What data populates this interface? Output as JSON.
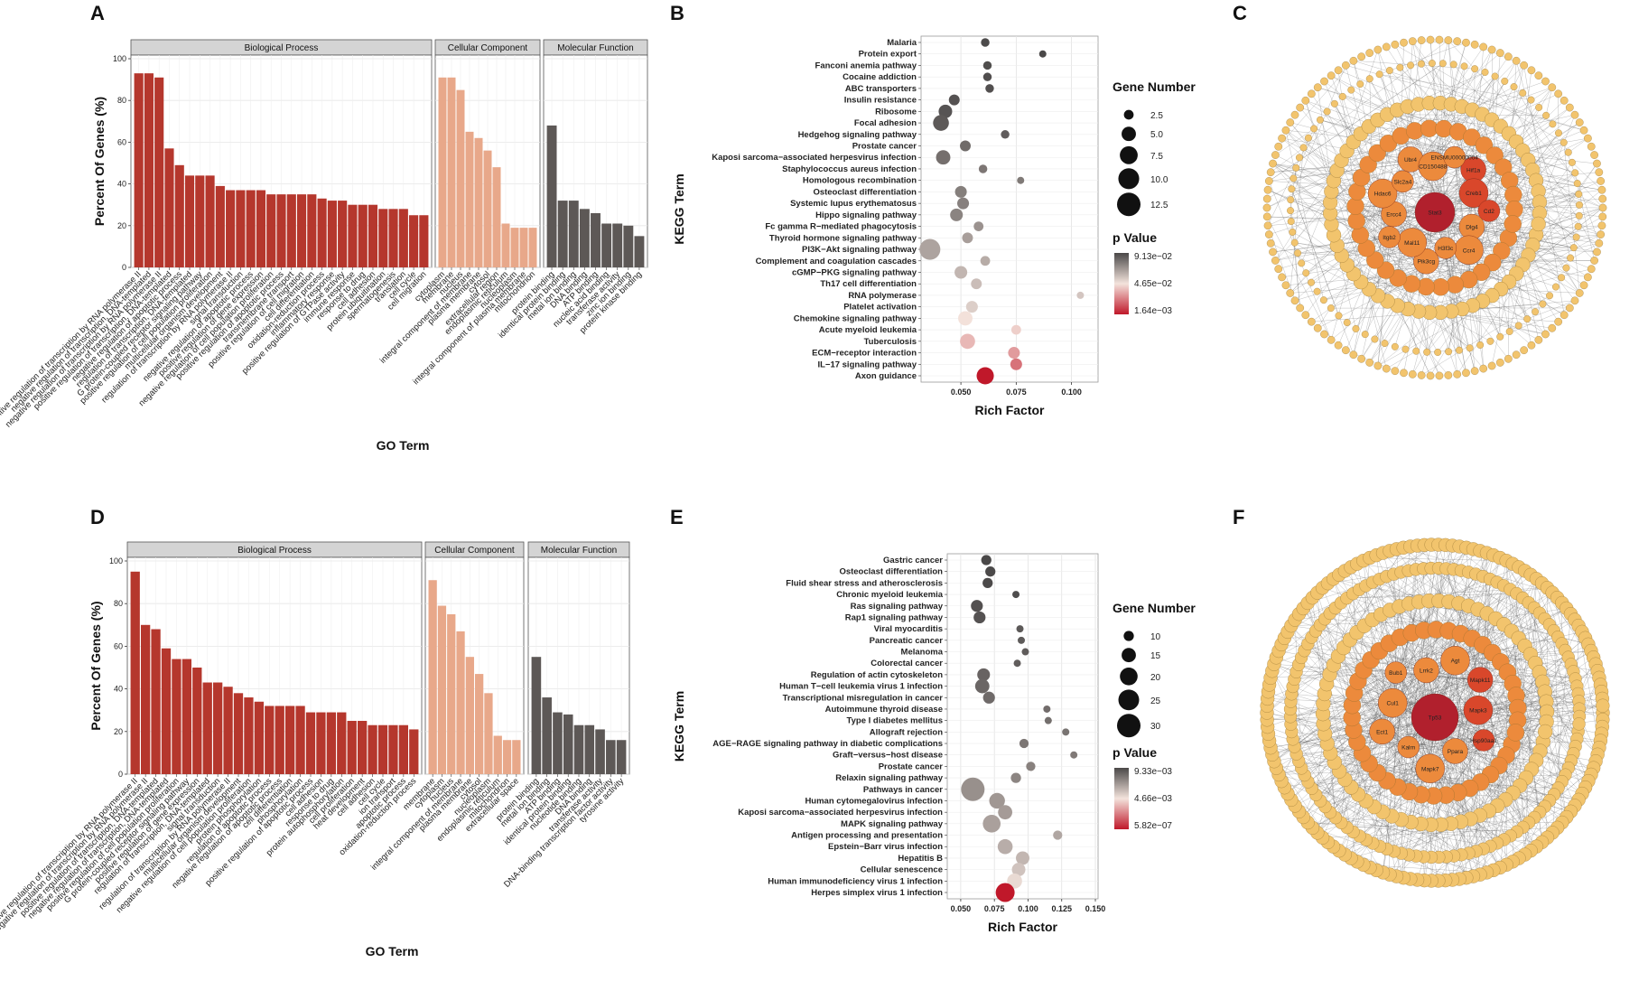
{
  "panels": {
    "A": "A",
    "B": "B",
    "C": "C",
    "D": "D",
    "E": "E",
    "F": "F"
  },
  "colors": {
    "bp": "#b5372d",
    "cc": "#e8a88a",
    "mf": "#5d5856",
    "pv_low": "#c0182a",
    "pv_mid": "#f3e3dc",
    "pv_high": "#4a4848",
    "highlight": "#e0242b",
    "node_outer": "#f2c46d",
    "node_mid": "#ec8a3c",
    "node_inner": "#d9472b",
    "node_core": "#b1202d"
  },
  "chart_data": [
    {
      "id": "A",
      "type": "bar",
      "title": "",
      "xlabel": "GO Term",
      "ylabel": "Percent Of Genes (%)",
      "ylim": [
        0,
        100
      ],
      "yticks": [
        0,
        20,
        40,
        60,
        80,
        100
      ],
      "facets": [
        {
          "name": "Biological Process",
          "categories": [
            "positive regulation of transcription by RNA polymerase II",
            "negative regulation of transcription, DNA-templated",
            "negative regulation of transcription by RNA polymerase II",
            "positive regulation of transcription, DNA-templated",
            "negative regulation of apoptotic process",
            "regulation of transcription, DNA-templated",
            "G protein-coupled receptor signaling pathway",
            "positive regulation of cell population proliferation",
            "multicellular organism development",
            "regulation of transcription by RNA polymerase II",
            "signal transduction",
            "negative regulation of apoptotic process",
            "positive regulation of gene expression",
            "negative regulation of cell population proliferation",
            "positive regulation of apoptotic process",
            "transmembrane transport",
            "positive regulation of cell migration",
            "cell differentiation",
            "oxidation-reduction process",
            "inflammatory response",
            "positive regulation of GTPase activity",
            "immune response",
            "response to drug",
            "cell adhesion",
            "protein ubiquitination",
            "spermatogenesis",
            "translation",
            "cell cycle",
            "cell migration"
          ],
          "highlight": [
            11,
            14,
            19
          ],
          "values": [
            93,
            93,
            91,
            57,
            49,
            44,
            44,
            44,
            39,
            37,
            37,
            37,
            37,
            35,
            35,
            35,
            35,
            35,
            33,
            32,
            32,
            30,
            30,
            30,
            28,
            28,
            28,
            25,
            25
          ]
        },
        {
          "name": "Cellular Component",
          "categories": [
            "cytoplasm",
            "membrane",
            "nucleus",
            "integral component of membrane",
            "plasma membrane",
            "cytosol",
            "extracellular region",
            "endoplasmic reticulum",
            "nucleoplasm",
            "integral component of plasma membrane",
            "mitochondrion"
          ],
          "highlight": [],
          "values": [
            91,
            91,
            85,
            65,
            62,
            56,
            48,
            21,
            19,
            19,
            19
          ]
        },
        {
          "name": "Molecular Function",
          "categories": [
            "protein binding",
            "identical protein binding",
            "metal ion binding",
            "DNA binding",
            "ATP binding",
            "nucleic acid binding",
            "transferase activity",
            "zinc ion binding",
            "protein kinase binding"
          ],
          "highlight": [],
          "values": [
            68,
            32,
            32,
            28,
            26,
            21,
            21,
            20,
            15
          ]
        }
      ]
    },
    {
      "id": "B",
      "type": "scatter",
      "xlabel": "Rich Factor",
      "ylabel": "KEGG Term",
      "xlim": [
        0.032,
        0.112
      ],
      "xticks": [
        "0.050",
        "0.075",
        "0.100"
      ],
      "xtick_values": [
        0.05,
        0.075,
        0.1
      ],
      "size_legend_title": "Gene Number",
      "size_legend": [
        "2.5",
        "5.0",
        "7.5",
        "10.0",
        "12.5"
      ],
      "size_legend_values": [
        2.5,
        5.0,
        7.5,
        10.0,
        12.5
      ],
      "color_legend_title": "p Value",
      "color_legend": [
        "9.13e−02",
        "4.65e−02",
        "1.64e−03"
      ],
      "terms": [
        {
          "label": "Malaria",
          "x": 0.061,
          "size": 2,
          "p": 0.088,
          "hl": false
        },
        {
          "label": "Protein export",
          "x": 0.087,
          "size": 1.5,
          "p": 0.091,
          "hl": false
        },
        {
          "label": "Fanconi anemia pathway",
          "x": 0.062,
          "size": 2,
          "p": 0.085,
          "hl": false
        },
        {
          "label": "Cocaine addiction",
          "x": 0.062,
          "size": 2,
          "p": 0.084,
          "hl": false
        },
        {
          "label": "ABC transporters",
          "x": 0.063,
          "size": 2,
          "p": 0.083,
          "hl": false
        },
        {
          "label": "Insulin resistance",
          "x": 0.047,
          "size": 3,
          "p": 0.08,
          "hl": false
        },
        {
          "label": "Ribosome",
          "x": 0.043,
          "size": 4.5,
          "p": 0.078,
          "hl": false
        },
        {
          "label": "Focal adhesion",
          "x": 0.041,
          "size": 6,
          "p": 0.073,
          "hl": false
        },
        {
          "label": "Hedgehog signaling pathway",
          "x": 0.07,
          "size": 2,
          "p": 0.07,
          "hl": false
        },
        {
          "label": "Prostate cancer",
          "x": 0.052,
          "size": 3,
          "p": 0.058,
          "hl": false
        },
        {
          "label": "Kaposi sarcoma−associated herpesvirus infection",
          "x": 0.042,
          "size": 5,
          "p": 0.055,
          "hl": false
        },
        {
          "label": "Staphylococcus aureus infection",
          "x": 0.06,
          "size": 2,
          "p": 0.05,
          "hl": true
        },
        {
          "label": "Homologous recombination",
          "x": 0.077,
          "size": 1.5,
          "p": 0.048,
          "hl": false
        },
        {
          "label": "Osteoclast differentiation",
          "x": 0.05,
          "size": 3.5,
          "p": 0.045,
          "hl": false
        },
        {
          "label": "Systemic lupus erythematosus",
          "x": 0.051,
          "size": 3.5,
          "p": 0.044,
          "hl": false
        },
        {
          "label": "Hippo signaling pathway",
          "x": 0.048,
          "size": 4,
          "p": 0.042,
          "hl": true
        },
        {
          "label": "Fc gamma R−mediated phagocytosis",
          "x": 0.058,
          "size": 2.5,
          "p": 0.035,
          "hl": true
        },
        {
          "label": "Thyroid hormone signaling pathway",
          "x": 0.053,
          "size": 3,
          "p": 0.03,
          "hl": false
        },
        {
          "label": "PI3K−Akt signaling pathway",
          "x": 0.036,
          "size": 10,
          "p": 0.028,
          "hl": true
        },
        {
          "label": "Complement and coagulation cascades",
          "x": 0.061,
          "size": 2.5,
          "p": 0.025,
          "hl": true
        },
        {
          "label": "cGMP−PKG signaling pathway",
          "x": 0.05,
          "size": 4,
          "p": 0.022,
          "hl": false
        },
        {
          "label": "Th17 cell differentiation",
          "x": 0.057,
          "size": 3,
          "p": 0.02,
          "hl": true
        },
        {
          "label": "RNA polymerase",
          "x": 0.104,
          "size": 1.5,
          "p": 0.018,
          "hl": false
        },
        {
          "label": "Platelet activation",
          "x": 0.055,
          "size": 3.5,
          "p": 0.016,
          "hl": false
        },
        {
          "label": "Chemokine signaling pathway",
          "x": 0.052,
          "size": 5,
          "p": 0.012,
          "hl": true
        },
        {
          "label": "Acute myeloid leukemia",
          "x": 0.075,
          "size": 2.5,
          "p": 0.01,
          "hl": false
        },
        {
          "label": "Tuberculosis",
          "x": 0.053,
          "size": 5.5,
          "p": 0.008,
          "hl": false
        },
        {
          "label": "ECM−receptor interaction",
          "x": 0.074,
          "size": 3.5,
          "p": 0.006,
          "hl": false
        },
        {
          "label": "IL−17 signaling pathway",
          "x": 0.075,
          "size": 3.5,
          "p": 0.004,
          "hl": true
        },
        {
          "label": "Axon guidance",
          "x": 0.061,
          "size": 7,
          "p": 0.0016,
          "hl": false
        }
      ]
    },
    {
      "id": "D",
      "type": "bar",
      "title": "",
      "xlabel": "GO Term",
      "ylabel": "Percent Of Genes (%)",
      "ylim": [
        0,
        100
      ],
      "yticks": [
        0,
        20,
        40,
        60,
        80,
        100
      ],
      "facets": [
        {
          "name": "Biological Process",
          "categories": [
            "positive regulation of transcription by RNA polymerase II",
            "negative regulation of transcription by RNA polymerase II",
            "positive regulation of transcription, DNA-templated",
            "negative regulation of transcription, DNA-templated",
            "positive regulation of cell population proliferation",
            "G protein-coupled receptor signaling pathway",
            "positive regulation of gene expression",
            "regulation of transcription, DNA-templated",
            "signal transduction",
            "regulation of transcription by RNA polymerase II",
            "multicellular organism development",
            "negative regulation of cell population proliferation",
            "protein phosphorylation",
            "regulation of apoptotic process",
            "negative regulation of apoptotic process",
            "cell differentiation",
            "phosphorylation",
            "positive regulation of apoptotic process",
            "cell adhesion",
            "response to drug",
            "protein autophosphorylation",
            "cell proliferation",
            "heat development",
            "cell adhesion",
            "cell cycle",
            "ion transport",
            "apoptotic process",
            "oxidation-reduction process"
          ],
          "highlight": [
            14,
            17,
            22,
            26
          ],
          "values": [
            95,
            70,
            68,
            59,
            54,
            54,
            50,
            43,
            43,
            41,
            38,
            36,
            34,
            32,
            32,
            32,
            32,
            29,
            29,
            29,
            29,
            25,
            25,
            23,
            23,
            23,
            23,
            21
          ]
        },
        {
          "name": "Cellular Component",
          "categories": [
            "membrane",
            "cytoplasm",
            "nucleus",
            "integral component of membrane",
            "plasma membrane",
            "cytosol",
            "nucleoplasm",
            "endoplasmic reticulum",
            "mitochondrion",
            "extracellular space"
          ],
          "highlight": [],
          "values": [
            91,
            79,
            75,
            67,
            55,
            47,
            38,
            18,
            16,
            16
          ]
        },
        {
          "name": "Molecular Function",
          "categories": [
            "protein binding",
            "metal ion binding",
            "ATP binding",
            "identical protein binding",
            "nucleotide binding",
            "DNA binding",
            "transferase activity",
            "DNA-binding transcription factor activity",
            "tyrosine activity"
          ],
          "highlight": [],
          "values": [
            55,
            36,
            29,
            28,
            23,
            23,
            21,
            16,
            16
          ]
        }
      ]
    },
    {
      "id": "E",
      "type": "scatter",
      "xlabel": "Rich Factor",
      "ylabel": "KEGG Term",
      "xlim": [
        0.04,
        0.152
      ],
      "xticks": [
        "0.050",
        "0.075",
        "0.100",
        "0.125",
        "0.150"
      ],
      "xtick_values": [
        0.05,
        0.075,
        0.1,
        0.125,
        0.15
      ],
      "size_legend_title": "Gene Number",
      "size_legend": [
        "10",
        "15",
        "20",
        "25",
        "30"
      ],
      "size_legend_values": [
        10,
        15,
        20,
        25,
        30
      ],
      "color_legend_title": "p Value",
      "color_legend": [
        "9.33e−03",
        "4.66e−03",
        "5.82e−07"
      ],
      "terms": [
        {
          "label": "Gastric cancer",
          "x": 0.069,
          "size": 10,
          "p": 0.0092,
          "hl": false
        },
        {
          "label": "Osteoclast differentiation",
          "x": 0.072,
          "size": 10,
          "p": 0.009,
          "hl": false
        },
        {
          "label": "Fluid shear stress and atherosclerosis",
          "x": 0.07,
          "size": 10,
          "p": 0.0088,
          "hl": false
        },
        {
          "label": "Chronic myeloid leukemia",
          "x": 0.091,
          "size": 7,
          "p": 0.008,
          "hl": false
        },
        {
          "label": "Ras signaling pathway",
          "x": 0.062,
          "size": 12,
          "p": 0.0072,
          "hl": false
        },
        {
          "label": "Rap1 signaling pathway",
          "x": 0.064,
          "size": 12,
          "p": 0.0068,
          "hl": false
        },
        {
          "label": "Viral myocarditis",
          "x": 0.094,
          "size": 7,
          "p": 0.0055,
          "hl": false
        },
        {
          "label": "Pancreatic cancer",
          "x": 0.095,
          "size": 7,
          "p": 0.0052,
          "hl": false
        },
        {
          "label": "Melanoma",
          "x": 0.098,
          "size": 7,
          "p": 0.005,
          "hl": false
        },
        {
          "label": "Colorectal cancer",
          "x": 0.092,
          "size": 7,
          "p": 0.0048,
          "hl": false
        },
        {
          "label": "Regulation of actin cytoskeleton",
          "x": 0.067,
          "size": 13,
          "p": 0.004,
          "hl": false
        },
        {
          "label": "Human T−cell leukemia virus 1 infection",
          "x": 0.066,
          "size": 15,
          "p": 0.0036,
          "hl": false
        },
        {
          "label": "Transcriptional misregulation in cancer",
          "x": 0.071,
          "size": 12,
          "p": 0.0032,
          "hl": false
        },
        {
          "label": "Autoimmune thyroid disease",
          "x": 0.114,
          "size": 7,
          "p": 0.003,
          "hl": false
        },
        {
          "label": "Type I diabetes mellitus",
          "x": 0.115,
          "size": 7,
          "p": 0.0028,
          "hl": false
        },
        {
          "label": "Allograft rejection",
          "x": 0.128,
          "size": 7,
          "p": 0.0024,
          "hl": false
        },
        {
          "label": "AGE−RAGE signaling pathway in diabetic complications",
          "x": 0.097,
          "size": 9,
          "p": 0.0022,
          "hl": true
        },
        {
          "label": "Graft−versus−host disease",
          "x": 0.134,
          "size": 7,
          "p": 0.002,
          "hl": false
        },
        {
          "label": "Prostate cancer",
          "x": 0.102,
          "size": 9,
          "p": 0.0016,
          "hl": false
        },
        {
          "label": "Relaxin signaling pathway",
          "x": 0.091,
          "size": 10,
          "p": 0.0014,
          "hl": false
        },
        {
          "label": "Pathways in cancer",
          "x": 0.059,
          "size": 30,
          "p": 0.001,
          "hl": false
        },
        {
          "label": "Human cytomegalovirus infection",
          "x": 0.077,
          "size": 17,
          "p": 0.0008,
          "hl": false
        },
        {
          "label": "Kaposi sarcoma−associated herpesvirus infection",
          "x": 0.083,
          "size": 15,
          "p": 0.0007,
          "hl": false
        },
        {
          "label": "MAPK signaling pathway",
          "x": 0.073,
          "size": 20,
          "p": 0.0006,
          "hl": true
        },
        {
          "label": "Antigen processing and presentation",
          "x": 0.122,
          "size": 9,
          "p": 0.0005,
          "hl": true
        },
        {
          "label": "Epstein−Barr virus infection",
          "x": 0.083,
          "size": 16,
          "p": 0.0004,
          "hl": false
        },
        {
          "label": "Hepatitis B",
          "x": 0.096,
          "size": 14,
          "p": 0.0003,
          "hl": false
        },
        {
          "label": "Cellular senescence",
          "x": 0.093,
          "size": 14,
          "p": 0.0002,
          "hl": false
        },
        {
          "label": "Human immunodeficiency virus 1 infection",
          "x": 0.09,
          "size": 16,
          "p": 0.0001,
          "hl": false
        },
        {
          "label": "Herpes simplex virus 1 infection",
          "x": 0.083,
          "size": 22,
          "p": 6e-07,
          "hl": false
        }
      ]
    }
  ],
  "networks": {
    "C": {
      "hub_labels": [
        "Stat3",
        "Hif1a",
        "Creb1",
        "Cd2",
        "Dlg4",
        "Ccr4",
        "H3f3c",
        "Pik3cg",
        "Mal11",
        "Itgb2",
        "Ercc4",
        "Hdac6",
        "Slc2a4",
        "Ubr4",
        "CD150488",
        "ENSMU00000004"
      ],
      "core_label": "Stat3"
    },
    "F": {
      "hub_labels": [
        "Tp53",
        "Mapk11",
        "Mapk3",
        "Hsp90aa1",
        "Ppara",
        "Mapk7",
        "Kalrn",
        "Ect1",
        "Cul1",
        "Bub1",
        "Lrrk2",
        "Agt"
      ],
      "core_label": "Tp53"
    }
  }
}
